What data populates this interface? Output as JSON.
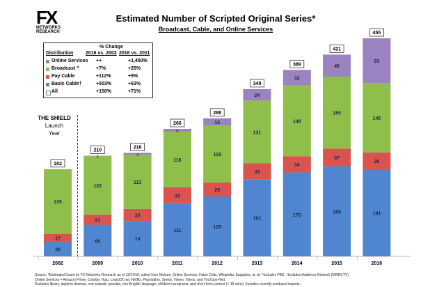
{
  "logo": {
    "main": "FX",
    "line1": "NETWORKS",
    "line2": "RESEARCH"
  },
  "chart_data": {
    "type": "bar",
    "stacked": true,
    "title": "Estimated Number of Scripted Original Series*",
    "subtitle": "Broadcast, Cable, and Online Services",
    "categories": [
      "2002",
      "2009",
      "2010",
      "2011",
      "2012",
      "2013",
      "2014",
      "2015",
      "2016"
    ],
    "series": [
      {
        "name": "Basic Cable",
        "color": "#4f86cf",
        "values": [
          30,
          66,
          74,
          111,
          125,
          161,
          175,
          188,
          181
        ]
      },
      {
        "name": "Pay Cable",
        "color": "#d9534f",
        "values": [
          17,
          21,
          25,
          33,
          29,
          33,
          34,
          37,
          36
        ]
      },
      {
        "name": "Broadcast",
        "color": "#8fbe4a",
        "values": [
          135,
          122,
          113,
          116,
          119,
          131,
          148,
          150,
          145
        ]
      },
      {
        "name": "Online Services",
        "color": "#9b82c1",
        "values": [
          0,
          1,
          4,
          6,
          15,
          24,
          32,
          46,
          93
        ]
      }
    ],
    "totals": [
      182,
      210,
      216,
      266,
      288,
      349,
      389,
      421,
      455
    ],
    "ylim": [
      0,
      470
    ],
    "annotation": {
      "line1": "THE SHIELD",
      "line2": "Launch",
      "line3": "Year"
    }
  },
  "legend": {
    "header": "% Change",
    "col0": "Distribution",
    "col1": "2016 vs. 2002",
    "col2": "2016 vs. 2011",
    "rows": [
      {
        "label": "Online Services",
        "a": "++",
        "b": "+1,450%",
        "color": "#8c8c8c"
      },
      {
        "label": "Broadcast ^",
        "a": "+7%",
        "b": "+25%",
        "color": "#8fbe4a"
      },
      {
        "label": "Pay Cable",
        "a": "+112%",
        "b": "+9%",
        "color": "#d9534f"
      },
      {
        "label": "Basic Cable†",
        "a": "+503%",
        "b": "+63%",
        "color": "#4f86cf"
      },
      {
        "label": "All",
        "a": "+150%",
        "b": "+71%",
        "color": "#ffffff"
      }
    ]
  },
  "source": {
    "line1": "Source:  *Estimated Count by FX Networks Research as of 12/14/16; culled from Nielsen, Online Services, Futon Critic, Wikipedia, Epguides, et. al.  ^Includes PBS.  †Includes Audience Network (DIRECTV).",
    "line2": "Online Services = Amazon Prime, Crackle, Hulu, LouisCK.net, Netflix, Playstation, Seeso, Vimeo, Yahoo, and YouTube Red.",
    "line3": "Excludes library, daytime dramas, one-episode specials, non-English language, children's programs, and short-form content (< 15 mins).  Includes recently-produced imports."
  }
}
